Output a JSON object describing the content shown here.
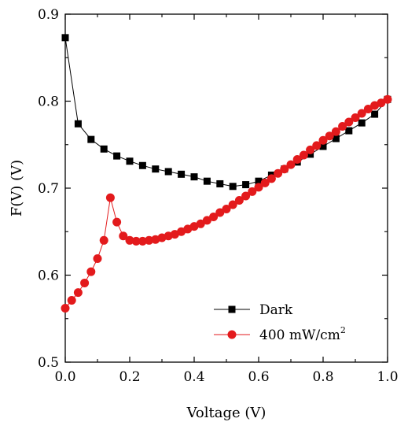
{
  "chart_data": {
    "type": "line",
    "title": "",
    "xlabel": "Voltage (V)",
    "ylabel": "F(V) (V)",
    "xlim": [
      0.0,
      1.0
    ],
    "ylim": [
      0.5,
      0.9
    ],
    "x_ticks": [
      "0.0",
      "0.2",
      "0.4",
      "0.6",
      "0.8",
      "1.0"
    ],
    "y_ticks": [
      "0.5",
      "0.6",
      "0.7",
      "0.8",
      "0.9"
    ],
    "grid": false,
    "legend_position": "bottom-right",
    "legend": [
      {
        "label": "Dark",
        "suffix": ""
      },
      {
        "label": "400 mW/cm",
        "suffix": "2"
      }
    ],
    "series": [
      {
        "name": "Dark",
        "color": "#000000",
        "marker": "square",
        "x": [
          0.0,
          0.04,
          0.08,
          0.12,
          0.16,
          0.2,
          0.24,
          0.28,
          0.32,
          0.36,
          0.4,
          0.44,
          0.48,
          0.52,
          0.56,
          0.6,
          0.64,
          0.68,
          0.72,
          0.76,
          0.8,
          0.84,
          0.88,
          0.92,
          0.96,
          1.0
        ],
        "y": [
          0.873,
          0.774,
          0.756,
          0.745,
          0.737,
          0.731,
          0.726,
          0.722,
          0.719,
          0.716,
          0.713,
          0.708,
          0.705,
          0.702,
          0.704,
          0.708,
          0.715,
          0.722,
          0.73,
          0.739,
          0.748,
          0.757,
          0.766,
          0.775,
          0.785,
          0.802
        ]
      },
      {
        "name": "400 mW/cm2",
        "color": "#e31a1c",
        "marker": "circle",
        "x": [
          0.0,
          0.02,
          0.04,
          0.06,
          0.08,
          0.1,
          0.12,
          0.14,
          0.16,
          0.18,
          0.2,
          0.22,
          0.24,
          0.26,
          0.28,
          0.3,
          0.32,
          0.34,
          0.36,
          0.38,
          0.4,
          0.42,
          0.44,
          0.46,
          0.48,
          0.5,
          0.52,
          0.54,
          0.56,
          0.58,
          0.6,
          0.62,
          0.64,
          0.66,
          0.68,
          0.7,
          0.72,
          0.74,
          0.76,
          0.78,
          0.8,
          0.82,
          0.84,
          0.86,
          0.88,
          0.9,
          0.92,
          0.94,
          0.96,
          0.98,
          1.0
        ],
        "y": [
          0.562,
          0.571,
          0.58,
          0.591,
          0.604,
          0.619,
          0.64,
          0.689,
          0.661,
          0.645,
          0.64,
          0.639,
          0.639,
          0.64,
          0.641,
          0.643,
          0.645,
          0.647,
          0.65,
          0.653,
          0.656,
          0.659,
          0.663,
          0.667,
          0.672,
          0.676,
          0.681,
          0.686,
          0.691,
          0.696,
          0.701,
          0.706,
          0.711,
          0.717,
          0.722,
          0.727,
          0.733,
          0.738,
          0.744,
          0.749,
          0.755,
          0.76,
          0.765,
          0.771,
          0.776,
          0.781,
          0.786,
          0.791,
          0.795,
          0.798,
          0.802
        ]
      }
    ]
  }
}
